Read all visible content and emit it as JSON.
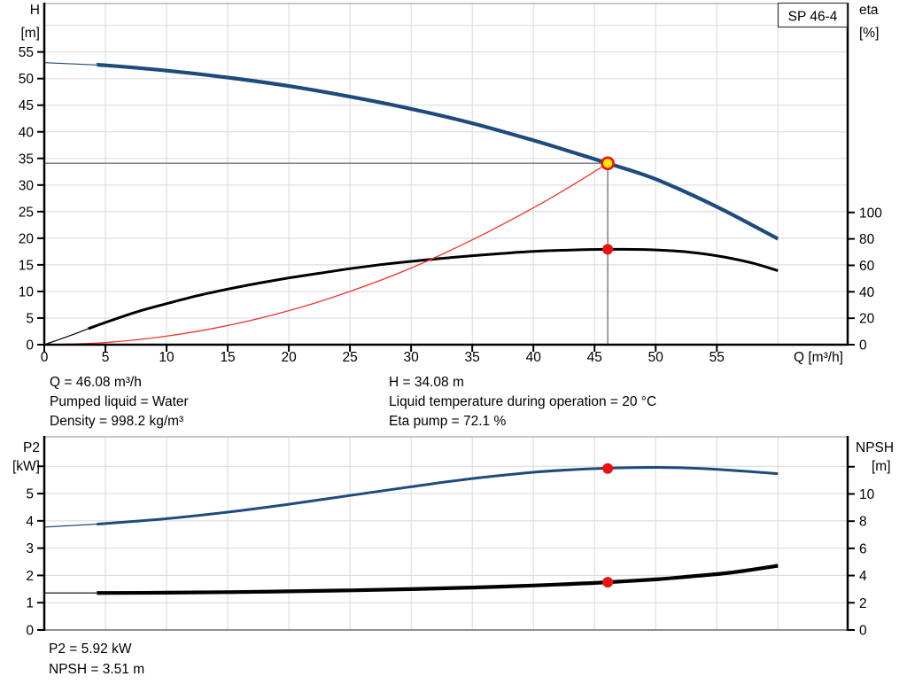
{
  "pump": {
    "model_box": "SP 46-4"
  },
  "colors": {
    "curve_blue": "#1d4b7c",
    "curve_black": "#000000",
    "curve_red": "#f0342c",
    "marker_red": "#ee1111",
    "marker_yellow": "#ffe600",
    "grid": "#d8d8d8",
    "border_gray": "#909090",
    "crosshair": "#7f7f7f",
    "axis": "#000000"
  },
  "info_top": {
    "q": "Q = 46.08 m³/h",
    "pumped_liquid": "Pumped liquid = Water",
    "density": "Density = 998.2 kg/m³",
    "h": "H = 34.08 m",
    "liquid_temp": "Liquid temperature during operation = 20 °C",
    "eta_pump": "Eta pump = 72.1 %"
  },
  "info_bottom": {
    "p2": "P2 = 5.92 kW",
    "npsh": "NPSH = 3.51 m"
  },
  "chart_data": [
    {
      "type": "line",
      "name": "qh-efficiency-chart",
      "x_axis": {
        "label": "Q [m³/h]",
        "min": 0,
        "max": 65.7,
        "ticks": [
          0,
          5,
          10,
          15,
          20,
          25,
          30,
          35,
          40,
          45,
          50,
          55
        ],
        "gridlines": [
          5,
          10,
          15,
          20,
          25,
          30,
          35,
          40,
          45,
          50,
          55,
          60
        ]
      },
      "y_left": {
        "title": "H",
        "unit": "[m]",
        "min": 0,
        "max": 64.1,
        "ticks": [
          0,
          5,
          10,
          15,
          20,
          25,
          30,
          35,
          40,
          45,
          50,
          55
        ],
        "gridlines": [
          5,
          10,
          15,
          20,
          25,
          30,
          35,
          40,
          45,
          50,
          55,
          60
        ]
      },
      "y_right": {
        "title": "eta",
        "unit": "[%]",
        "min": 0,
        "max": 258,
        "ticks": [
          0,
          20,
          40,
          60,
          80,
          100
        ],
        "extra_ticks": []
      },
      "series": [
        {
          "name": "head-curve",
          "axis": "left",
          "color_key": "curve_blue",
          "width": 4.2,
          "thin_width": 1.2,
          "thin_until": 4.3,
          "points": [
            [
              0,
              53
            ],
            [
              5,
              52.5
            ],
            [
              10,
              51.5
            ],
            [
              15,
              50.2
            ],
            [
              20,
              48.6
            ],
            [
              25,
              46.6
            ],
            [
              30,
              44.3
            ],
            [
              35,
              41.6
            ],
            [
              40,
              38.4
            ],
            [
              43,
              36.3
            ],
            [
              46.08,
              34.08
            ],
            [
              50,
              31.1
            ],
            [
              55,
              25.9
            ],
            [
              60,
              19.9
            ]
          ]
        },
        {
          "name": "efficiency-curve",
          "axis": "right",
          "color_key": "curve_black",
          "width": 3,
          "thin_width": 1.2,
          "thin_until": 3.6,
          "points": [
            [
              0,
              0
            ],
            [
              2,
              6.5
            ],
            [
              4,
              13.5
            ],
            [
              6,
              20
            ],
            [
              8,
              26
            ],
            [
              10,
              31
            ],
            [
              12.5,
              37
            ],
            [
              15,
              42
            ],
            [
              17.5,
              46.5
            ],
            [
              20,
              50.5
            ],
            [
              22.5,
              54
            ],
            [
              25,
              57.5
            ],
            [
              27.5,
              60.5
            ],
            [
              30,
              63
            ],
            [
              32.5,
              65.3
            ],
            [
              35,
              67.3
            ],
            [
              37.5,
              69
            ],
            [
              40,
              70.5
            ],
            [
              43,
              71.6
            ],
            [
              46.08,
              72.1
            ],
            [
              49,
              72
            ],
            [
              52,
              70.6
            ],
            [
              54,
              68.6
            ],
            [
              56,
              65.6
            ],
            [
              58,
              61.5
            ],
            [
              60,
              56
            ]
          ]
        },
        {
          "name": "system-curve",
          "axis": "left",
          "color_key": "curve_red",
          "width": 1.3,
          "thin_width": 1.3,
          "thin_until": 0,
          "points": [
            [
              0,
              0
            ],
            [
              5,
              0.4
            ],
            [
              10,
              1.6
            ],
            [
              15,
              3.6
            ],
            [
              20,
              6.4
            ],
            [
              25,
              10
            ],
            [
              30,
              14.4
            ],
            [
              35,
              19.7
            ],
            [
              40,
              25.7
            ],
            [
              43,
              29.7
            ],
            [
              46.08,
              34.08
            ]
          ]
        }
      ],
      "markers": [
        {
          "name": "duty-point",
          "axis": "left",
          "x": 46.08,
          "y": 34.08,
          "r": 6.5,
          "fill_key": "marker_yellow",
          "stroke_key": "marker_red",
          "stroke_width": 2.6
        },
        {
          "name": "efficiency-point",
          "axis": "right",
          "x": 46.08,
          "y": 72.1,
          "r": 6,
          "fill_key": "marker_red",
          "stroke_key": null,
          "stroke_width": 0
        }
      ],
      "crosshair": {
        "x": 46.08,
        "y": 34.08
      }
    },
    {
      "type": "line",
      "name": "power-npsh-chart",
      "x_axis": {
        "label": "",
        "min": 0,
        "max": 65.7,
        "ticks": [],
        "gridlines": [
          5,
          10,
          15,
          20,
          25,
          30,
          35,
          40,
          45,
          50,
          55,
          60
        ]
      },
      "y_left": {
        "title": "P2",
        "unit": "[kW]",
        "min": 0,
        "max": 7.08,
        "ticks": [
          0,
          1,
          2,
          3,
          4,
          5
        ],
        "extra_ticks": [
          6
        ],
        "gridlines": [
          1,
          2,
          3,
          4,
          5,
          6
        ]
      },
      "y_right": {
        "title": "NPSH",
        "unit": "[m]",
        "min": 0,
        "max": 14.2,
        "ticks": [
          0,
          2,
          4,
          6,
          8,
          10
        ],
        "extra_ticks": [
          12
        ]
      },
      "series": [
        {
          "name": "power-curve",
          "axis": "left",
          "color_key": "curve_blue",
          "width": 3,
          "thin_width": 1.2,
          "thin_until": 4.3,
          "points": [
            [
              0,
              3.77
            ],
            [
              5,
              3.9
            ],
            [
              10,
              4.08
            ],
            [
              15,
              4.32
            ],
            [
              20,
              4.61
            ],
            [
              25,
              4.93
            ],
            [
              30,
              5.25
            ],
            [
              35,
              5.55
            ],
            [
              40,
              5.78
            ],
            [
              43,
              5.87
            ],
            [
              46.08,
              5.93
            ],
            [
              50,
              5.96
            ],
            [
              53,
              5.93
            ],
            [
              56,
              5.86
            ],
            [
              60,
              5.73
            ]
          ]
        },
        {
          "name": "npsh-curve",
          "axis": "right",
          "color_key": "curve_black",
          "width": 4.2,
          "thin_width": 1.2,
          "thin_until": 4.3,
          "points": [
            [
              0,
              2.72
            ],
            [
              5,
              2.72
            ],
            [
              10,
              2.74
            ],
            [
              15,
              2.78
            ],
            [
              20,
              2.84
            ],
            [
              25,
              2.91
            ],
            [
              30,
              3
            ],
            [
              35,
              3.12
            ],
            [
              40,
              3.27
            ],
            [
              43,
              3.38
            ],
            [
              46.08,
              3.51
            ],
            [
              50,
              3.72
            ],
            [
              53,
              3.95
            ],
            [
              56,
              4.2
            ],
            [
              60,
              4.72
            ]
          ]
        }
      ],
      "markers": [
        {
          "name": "power-point",
          "axis": "left",
          "x": 46.08,
          "y": 5.92,
          "r": 6,
          "fill_key": "marker_red",
          "stroke_key": null,
          "stroke_width": 0
        },
        {
          "name": "npsh-point",
          "axis": "right",
          "x": 46.08,
          "y": 3.51,
          "r": 6,
          "fill_key": "marker_red",
          "stroke_key": null,
          "stroke_width": 0
        }
      ],
      "crosshair": null
    }
  ]
}
